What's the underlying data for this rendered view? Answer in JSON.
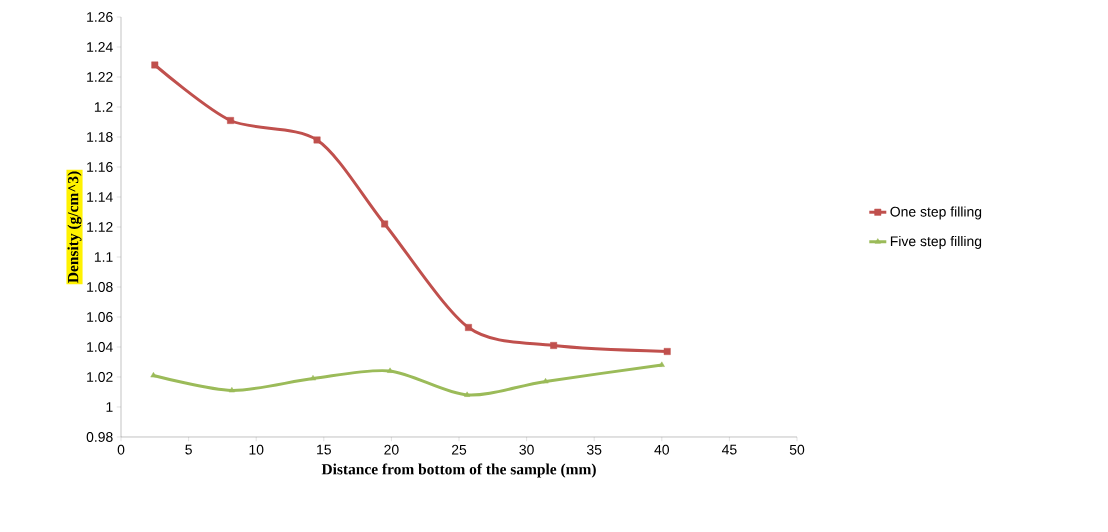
{
  "chart_data": {
    "type": "line",
    "xlabel": "Distance from bottom of the sample (mm)",
    "ylabel": "Density (g/cm^3)",
    "xlim": [
      0,
      50
    ],
    "xticks": [
      0,
      5,
      10,
      15,
      20,
      25,
      30,
      35,
      40,
      45,
      50
    ],
    "ylim": [
      0.98,
      1.26
    ],
    "yticks": [
      0.98,
      1,
      1.02,
      1.04,
      1.06,
      1.08,
      1.1,
      1.12,
      1.14,
      1.16,
      1.18,
      1.2,
      1.22,
      1.24,
      1.26
    ],
    "grid": false,
    "legend": "right",
    "line_style": "solid",
    "series": [
      {
        "name": "One step filling",
        "color": "#c0504d",
        "marker": "square",
        "x": [
          2.5,
          8.1,
          14.5,
          19.5,
          25.7,
          32,
          40.4
        ],
        "values": [
          1.228,
          1.191,
          1.178,
          1.122,
          1.053,
          1.041,
          1.037
        ]
      },
      {
        "name": "Five step filling",
        "color": "#9bbb59",
        "marker": "triangle",
        "x": [
          2.4,
          8.2,
          14.2,
          19.9,
          25.6,
          31.4,
          40
        ],
        "values": [
          1.021,
          1.011,
          1.019,
          1.024,
          1.008,
          1.017,
          1.028
        ]
      }
    ]
  }
}
